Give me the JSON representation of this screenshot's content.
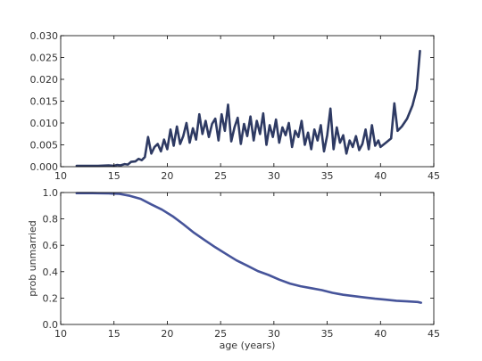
{
  "chart_data": [
    {
      "type": "line",
      "title": "",
      "xlabel": "",
      "ylabel": "",
      "xlim": [
        10,
        45
      ],
      "ylim": [
        0.0,
        0.03
      ],
      "xticks": [
        "10",
        "15",
        "20",
        "25",
        "30",
        "35",
        "40",
        "45"
      ],
      "yticks": [
        "0.000",
        "0.005",
        "0.010",
        "0.015",
        "0.020",
        "0.025",
        "0.030"
      ],
      "grid": false,
      "line_color": "#2e3a63",
      "series": [
        {
          "x": [
            11.5,
            12.5,
            13.5,
            14.5,
            15.0,
            15.3,
            15.6,
            16.0,
            16.3,
            16.6,
            17.0,
            17.3,
            17.6,
            17.9,
            18.2,
            18.5,
            18.8,
            19.1,
            19.4,
            19.7,
            20.0,
            20.3,
            20.6,
            20.9,
            21.2,
            21.5,
            21.8,
            22.1,
            22.4,
            22.7,
            23.0,
            23.3,
            23.6,
            23.9,
            24.2,
            24.5,
            24.8,
            25.1,
            25.4,
            25.7,
            26.0,
            26.3,
            26.6,
            26.9,
            27.2,
            27.5,
            27.8,
            28.1,
            28.4,
            28.7,
            29.0,
            29.3,
            29.6,
            29.9,
            30.2,
            30.5,
            30.8,
            31.1,
            31.4,
            31.7,
            32.0,
            32.3,
            32.6,
            32.9,
            33.2,
            33.5,
            33.8,
            34.1,
            34.4,
            34.7,
            35.0,
            35.3,
            35.6,
            35.9,
            36.2,
            36.5,
            36.8,
            37.1,
            37.4,
            37.7,
            38.0,
            38.3,
            38.6,
            38.9,
            39.2,
            39.5,
            39.8,
            40.0,
            40.5,
            41.0,
            41.3,
            41.6,
            42.0,
            42.5,
            43.0,
            43.4,
            43.7
          ],
          "y": [
            0.0002,
            0.0002,
            0.0002,
            0.0003,
            0.0002,
            0.0004,
            0.0003,
            0.0006,
            0.0005,
            0.0011,
            0.0012,
            0.0018,
            0.0015,
            0.0022,
            0.0068,
            0.003,
            0.0045,
            0.0052,
            0.0035,
            0.0062,
            0.004,
            0.0085,
            0.0048,
            0.0092,
            0.0052,
            0.007,
            0.01,
            0.0055,
            0.0088,
            0.0062,
            0.012,
            0.0075,
            0.0105,
            0.0068,
            0.0098,
            0.011,
            0.006,
            0.012,
            0.0082,
            0.0142,
            0.0058,
            0.009,
            0.0112,
            0.0052,
            0.0098,
            0.007,
            0.0115,
            0.006,
            0.0105,
            0.0075,
            0.0122,
            0.005,
            0.0095,
            0.0068,
            0.0108,
            0.0055,
            0.009,
            0.0072,
            0.01,
            0.0045,
            0.0082,
            0.0068,
            0.0105,
            0.005,
            0.0078,
            0.004,
            0.0085,
            0.006,
            0.0095,
            0.0035,
            0.0072,
            0.0133,
            0.004,
            0.009,
            0.0055,
            0.0072,
            0.003,
            0.006,
            0.0045,
            0.007,
            0.0038,
            0.0052,
            0.0085,
            0.004,
            0.0095,
            0.0048,
            0.006,
            0.0045,
            0.0055,
            0.0065,
            0.0145,
            0.0082,
            0.0092,
            0.011,
            0.014,
            0.0178,
            0.0265
          ]
        }
      ]
    },
    {
      "type": "line",
      "title": "",
      "xlabel": "age (years)",
      "ylabel": "prob unmarried",
      "xlim": [
        10,
        45
      ],
      "ylim": [
        0.0,
        1.0
      ],
      "xticks": [
        "10",
        "15",
        "20",
        "25",
        "30",
        "35",
        "40",
        "45"
      ],
      "yticks": [
        "0.0",
        "0.2",
        "0.4",
        "0.6",
        "0.8",
        "1.0"
      ],
      "grid": false,
      "line_color": "#46549a",
      "series": [
        {
          "x": [
            11.5,
            13.0,
            14.5,
            15.5,
            16.5,
            17.5,
            18.5,
            19.5,
            20.5,
            21.5,
            22.5,
            23.5,
            24.5,
            25.5,
            26.5,
            27.5,
            28.5,
            29.5,
            30.5,
            31.5,
            32.5,
            33.5,
            34.5,
            35.5,
            36.5,
            37.5,
            38.5,
            39.5,
            40.5,
            41.5,
            42.5,
            43.5,
            43.8
          ],
          "y": [
            0.995,
            0.995,
            0.993,
            0.99,
            0.975,
            0.952,
            0.91,
            0.87,
            0.82,
            0.76,
            0.695,
            0.64,
            0.585,
            0.535,
            0.485,
            0.445,
            0.405,
            0.375,
            0.34,
            0.31,
            0.29,
            0.275,
            0.26,
            0.24,
            0.225,
            0.215,
            0.205,
            0.195,
            0.188,
            0.18,
            0.175,
            0.17,
            0.165
          ]
        }
      ]
    }
  ]
}
